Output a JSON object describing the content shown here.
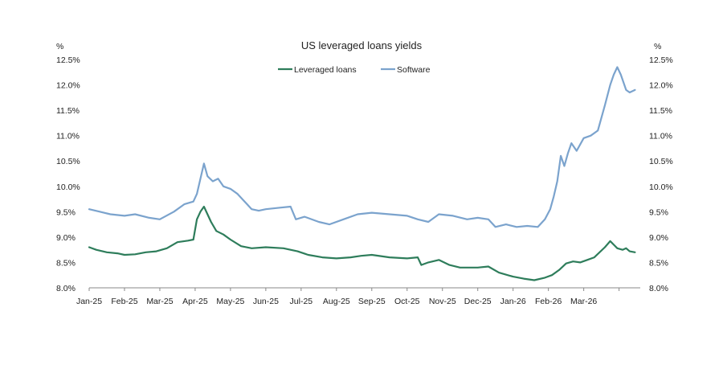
{
  "chart_data": {
    "type": "line",
    "title": "US leveraged loans yields",
    "unit_left": "%",
    "unit_right": "%",
    "ylim": [
      8.0,
      12.5
    ],
    "yticks": [
      8.0,
      8.5,
      9.0,
      9.5,
      10.0,
      10.5,
      11.0,
      11.5,
      12.0,
      12.5
    ],
    "ytick_labels": [
      "8.0%",
      "8.5%",
      "9.0%",
      "9.5%",
      "10.0%",
      "10.5%",
      "11.0%",
      "11.5%",
      "12.0%",
      "12.5%"
    ],
    "categories": [
      "Jan-25",
      "Feb-25",
      "Mar-25",
      "Apr-25",
      "May-25",
      "Jun-25",
      "Jul-25",
      "Aug-25",
      "Sep-25",
      "Oct-25",
      "Nov-25",
      "Dec-25",
      "Jan-26",
      "Feb-26",
      "Mar-26"
    ],
    "x_range_months": [
      0,
      15.6
    ],
    "legend_position": "top-center",
    "series": [
      {
        "name": "Leveraged loans",
        "color": "#2e7d5b",
        "x": [
          0,
          0.2,
          0.5,
          0.8,
          1.0,
          1.3,
          1.6,
          1.9,
          2.2,
          2.5,
          2.8,
          2.95,
          3.05,
          3.15,
          3.25,
          3.35,
          3.45,
          3.6,
          3.8,
          4.0,
          4.3,
          4.6,
          5.0,
          5.5,
          5.9,
          6.2,
          6.6,
          7.0,
          7.4,
          7.7,
          8.0,
          8.5,
          9.0,
          9.3,
          9.4,
          9.6,
          9.9,
          10.2,
          10.5,
          11.0,
          11.3,
          11.6,
          12.0,
          12.3,
          12.6,
          12.9,
          13.1,
          13.3,
          13.5,
          13.7,
          13.9,
          14.1,
          14.3,
          14.6,
          14.75,
          14.85,
          14.95,
          15.1,
          15.2,
          15.3,
          15.45
        ],
        "values": [
          8.8,
          8.75,
          8.7,
          8.68,
          8.65,
          8.66,
          8.7,
          8.72,
          8.78,
          8.9,
          8.93,
          8.95,
          9.35,
          9.5,
          9.6,
          9.45,
          9.3,
          9.12,
          9.05,
          8.95,
          8.82,
          8.78,
          8.8,
          8.78,
          8.72,
          8.65,
          8.6,
          8.58,
          8.6,
          8.63,
          8.65,
          8.6,
          8.58,
          8.6,
          8.45,
          8.5,
          8.55,
          8.45,
          8.4,
          8.4,
          8.42,
          8.3,
          8.22,
          8.18,
          8.15,
          8.2,
          8.25,
          8.35,
          8.48,
          8.52,
          8.5,
          8.55,
          8.6,
          8.8,
          8.92,
          8.85,
          8.78,
          8.75,
          8.78,
          8.72,
          8.7
        ]
      },
      {
        "name": "Software",
        "color": "#7ba3cd",
        "x": [
          0,
          0.3,
          0.6,
          1.0,
          1.3,
          1.7,
          2.0,
          2.4,
          2.7,
          2.95,
          3.05,
          3.15,
          3.25,
          3.35,
          3.5,
          3.65,
          3.8,
          4.0,
          4.2,
          4.4,
          4.6,
          4.8,
          5.0,
          5.4,
          5.7,
          5.85,
          6.1,
          6.5,
          6.8,
          7.2,
          7.6,
          8.0,
          8.5,
          9.0,
          9.3,
          9.6,
          9.9,
          10.3,
          10.7,
          11.0,
          11.3,
          11.5,
          11.8,
          12.1,
          12.4,
          12.7,
          12.9,
          13.05,
          13.15,
          13.25,
          13.35,
          13.45,
          13.55,
          13.65,
          13.8,
          14.0,
          14.2,
          14.4,
          14.6,
          14.75,
          14.85,
          14.95,
          15.05,
          15.2,
          15.3,
          15.45
        ],
        "values": [
          9.55,
          9.5,
          9.45,
          9.42,
          9.45,
          9.38,
          9.35,
          9.5,
          9.65,
          9.7,
          9.85,
          10.15,
          10.45,
          10.2,
          10.1,
          10.15,
          10.0,
          9.95,
          9.85,
          9.7,
          9.55,
          9.52,
          9.55,
          9.58,
          9.6,
          9.35,
          9.4,
          9.3,
          9.25,
          9.35,
          9.45,
          9.48,
          9.45,
          9.42,
          9.35,
          9.3,
          9.45,
          9.42,
          9.35,
          9.38,
          9.35,
          9.2,
          9.25,
          9.2,
          9.22,
          9.2,
          9.35,
          9.55,
          9.8,
          10.1,
          10.6,
          10.4,
          10.65,
          10.85,
          10.7,
          10.95,
          11.0,
          11.1,
          11.6,
          12.0,
          12.2,
          12.35,
          12.2,
          11.9,
          11.85,
          11.9
        ]
      }
    ]
  }
}
